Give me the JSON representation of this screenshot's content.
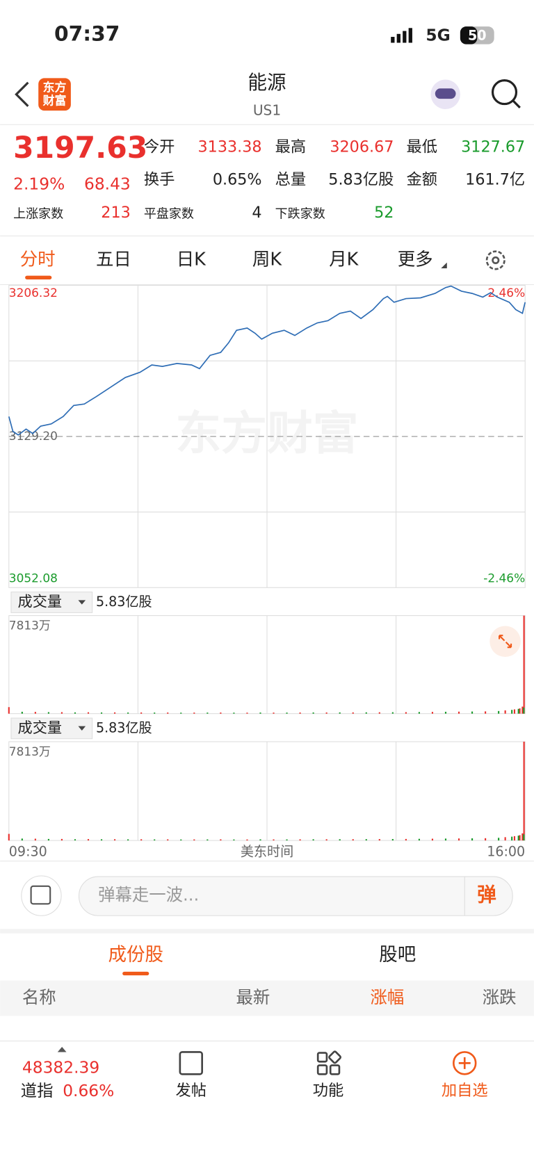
{
  "status_bar": {
    "time": "07:37",
    "network": "5G",
    "battery": "50"
  },
  "header": {
    "title": "能源",
    "code": "US1",
    "logo": "东方财富"
  },
  "quote": {
    "price": "3197.63",
    "change_pct": "2.19%",
    "change": "68.43",
    "stats": [
      [
        "今开",
        "3133.38"
      ],
      [
        "最高",
        "3206.67"
      ],
      [
        "最低",
        "3127.67"
      ],
      [
        "换手",
        "0.65%"
      ],
      [
        "总量",
        "5.83亿股"
      ],
      [
        "金额",
        "161.7亿"
      ]
    ],
    "breadth": [
      [
        "上涨家数",
        "213"
      ],
      [
        "平盘家数",
        "4"
      ],
      [
        "下跌家数",
        "52"
      ]
    ]
  },
  "tabs": [
    "分时",
    "五日",
    "日K",
    "周K",
    "月K",
    "更多"
  ],
  "chart": {
    "type": "line",
    "color": "#2e6db5",
    "x": [
      "09:30",
      "09:33",
      "09:37",
      "09:43",
      "09:48",
      "09:54",
      "10:02",
      "10:11",
      "10:19",
      "10:27",
      "10:36",
      "10:47",
      "10:58",
      "11:09",
      "11:18",
      "11:26",
      "11:37",
      "11:48",
      "11:54",
      "12:02",
      "12:10",
      "12:16",
      "12:22",
      "12:30",
      "12:36",
      "12:41",
      "12:49",
      "12:58",
      "13:06",
      "13:15",
      "13:23",
      "13:31",
      "13:40",
      "13:48",
      "13:56",
      "14:05",
      "14:13",
      "14:16",
      "14:21",
      "14:30",
      "14:41",
      "14:52",
      "15:00",
      "15:04",
      "15:12",
      "15:20",
      "15:28",
      "15:34",
      "15:39",
      "15:48",
      "15:53",
      "15:58",
      "16:00"
    ],
    "values": [
      3139.36,
      3131.83,
      3129.95,
      3132.96,
      3130.7,
      3134.47,
      3135.59,
      3139.36,
      3145.0,
      3145.75,
      3149.51,
      3154.4,
      3159.29,
      3161.93,
      3165.69,
      3164.94,
      3166.44,
      3165.69,
      3163.81,
      3170.58,
      3172.09,
      3176.98,
      3183.37,
      3184.5,
      3181.87,
      3178.86,
      3181.87,
      3183.37,
      3180.74,
      3184.5,
      3187.13,
      3188.26,
      3192.02,
      3193.15,
      3189.39,
      3193.91,
      3199.55,
      3200.68,
      3197.67,
      3199.55,
      3199.92,
      3202.18,
      3205.19,
      3205.94,
      3203.31,
      3202.18,
      3200.3,
      3202.56,
      3200.3,
      3197.67,
      3193.91,
      3192.02,
      3197.67
    ],
    "xlim": [
      "09:30",
      "16:00"
    ],
    "x_label": "美东时间",
    "ylim": [
      3052.08,
      3206.32
    ],
    "yticks": [
      {
        "value": 3129.2,
        "label": "3129.20"
      }
    ],
    "pct_labels": [
      "2.46%",
      "-2.46%"
    ],
    "grid": true
  },
  "volume": {
    "panels": [
      {
        "label": "成交量",
        "total": "5.83亿股"
      },
      {
        "label": "成交量",
        "total": "5.83亿股"
      }
    ],
    "ylim": [
      0,
      7813
    ],
    "yticks": [
      {
        "value": 7813,
        "label": "7813万"
      }
    ],
    "series": [
      {
        "color": "#e9302d",
        "x": [
          "09:30",
          "09:50",
          "10:10",
          "10:30",
          "10:50",
          "11:10",
          "11:30",
          "11:50",
          "12:10",
          "12:30",
          "12:50",
          "13:10",
          "13:30",
          "13:50",
          "14:10",
          "14:30",
          "14:50",
          "15:10",
          "15:30",
          "15:45",
          "15:52",
          "15:56",
          "15:58",
          "16:00"
        ],
        "values": [
          520,
          140,
          120,
          110,
          100,
          95,
          90,
          85,
          90,
          80,
          85,
          90,
          95,
          100,
          110,
          120,
          140,
          160,
          180,
          260,
          340,
          420,
          560,
          7813
        ]
      },
      {
        "color": "#1a9b2c",
        "x": [
          "09:40",
          "10:00",
          "10:20",
          "10:40",
          "11:00",
          "11:20",
          "11:40",
          "12:00",
          "12:20",
          "12:40",
          "13:00",
          "13:20",
          "13:40",
          "14:00",
          "14:20",
          "14:40",
          "15:00",
          "15:20",
          "15:40",
          "15:50",
          "15:55",
          "15:59"
        ],
        "values": [
          150,
          120,
          100,
          95,
          90,
          85,
          80,
          85,
          80,
          90,
          85,
          95,
          100,
          105,
          115,
          130,
          150,
          170,
          210,
          300,
          380,
          480
        ]
      }
    ]
  },
  "comment": {
    "placeholder": "弹幕走一波...",
    "button": "弹"
  },
  "sub_tabs": [
    "成份股",
    "股吧"
  ],
  "table_header": [
    "名称",
    "最新",
    "涨幅",
    "涨跌"
  ],
  "bottom_bar": {
    "index_value": "48382.39",
    "index_name": "道指",
    "index_change": "0.66%",
    "actions": [
      "发帖",
      "功能",
      "加自选"
    ]
  }
}
